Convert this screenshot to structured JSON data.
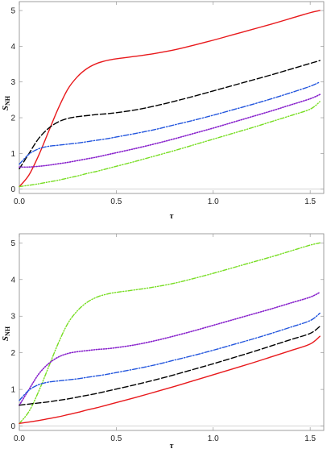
{
  "chart_data": [
    {
      "type": "line",
      "title": "",
      "xlabel": "τ",
      "ylabel": "S",
      "ylabel_sub": "NH",
      "xlim": [
        0,
        1.57
      ],
      "ylim": [
        -0.12,
        5.25
      ],
      "xticks": [
        0.0,
        0.5,
        1.0,
        1.5
      ],
      "xtick_labels": [
        "0.0",
        "0.5",
        "1.0",
        "1.5"
      ],
      "yticks": [
        0,
        1,
        2,
        3,
        4,
        5
      ],
      "ytick_labels": [
        "0",
        "1",
        "2",
        "3",
        "4",
        "5"
      ],
      "grid": false,
      "series": [
        {
          "color": "#e8191c",
          "style": "solid",
          "x": [
            0,
            0.05,
            0.1,
            0.15,
            0.2,
            0.25,
            0.3,
            0.35,
            0.4,
            0.45,
            0.5,
            0.6,
            0.7,
            0.8,
            0.9,
            1.0,
            1.1,
            1.2,
            1.3,
            1.4,
            1.5,
            1.55
          ],
          "y": [
            0.07,
            0.4,
            0.95,
            1.6,
            2.25,
            2.8,
            3.15,
            3.38,
            3.52,
            3.6,
            3.65,
            3.72,
            3.8,
            3.9,
            4.03,
            4.17,
            4.32,
            4.47,
            4.62,
            4.78,
            4.94,
            5.0
          ]
        },
        {
          "color": "#000000",
          "style": "dashed",
          "x": [
            0,
            0.05,
            0.1,
            0.15,
            0.2,
            0.25,
            0.3,
            0.35,
            0.4,
            0.45,
            0.5,
            0.6,
            0.7,
            0.8,
            0.9,
            1.0,
            1.1,
            1.2,
            1.3,
            1.4,
            1.5,
            1.55
          ],
          "y": [
            0.57,
            1.0,
            1.42,
            1.7,
            1.88,
            1.98,
            2.03,
            2.06,
            2.09,
            2.11,
            2.14,
            2.22,
            2.33,
            2.46,
            2.6,
            2.75,
            2.9,
            3.05,
            3.2,
            3.36,
            3.52,
            3.6
          ]
        },
        {
          "color": "#2255dd",
          "style": "dashdot",
          "x": [
            0,
            0.05,
            0.1,
            0.15,
            0.2,
            0.25,
            0.3,
            0.35,
            0.4,
            0.45,
            0.5,
            0.6,
            0.7,
            0.8,
            0.9,
            1.0,
            1.1,
            1.2,
            1.3,
            1.4,
            1.5,
            1.55
          ],
          "y": [
            0.7,
            0.98,
            1.13,
            1.2,
            1.23,
            1.26,
            1.29,
            1.33,
            1.37,
            1.41,
            1.46,
            1.56,
            1.67,
            1.8,
            1.93,
            2.07,
            2.22,
            2.37,
            2.53,
            2.7,
            2.88,
            3.0
          ]
        },
        {
          "color": "#8822cc",
          "style": "dotted",
          "x": [
            0,
            0.05,
            0.1,
            0.15,
            0.2,
            0.25,
            0.3,
            0.35,
            0.4,
            0.45,
            0.5,
            0.6,
            0.7,
            0.8,
            0.9,
            1.0,
            1.1,
            1.2,
            1.3,
            1.4,
            1.5,
            1.55
          ],
          "y": [
            0.62,
            0.62,
            0.64,
            0.67,
            0.71,
            0.75,
            0.8,
            0.85,
            0.9,
            0.96,
            1.02,
            1.14,
            1.27,
            1.41,
            1.56,
            1.71,
            1.87,
            2.03,
            2.19,
            2.36,
            2.53,
            2.65
          ]
        },
        {
          "color": "#77dd22",
          "style": "dashdotdot",
          "x": [
            0,
            0.05,
            0.1,
            0.15,
            0.2,
            0.25,
            0.3,
            0.35,
            0.4,
            0.45,
            0.5,
            0.6,
            0.7,
            0.8,
            0.9,
            1.0,
            1.1,
            1.2,
            1.3,
            1.4,
            1.5,
            1.55
          ],
          "y": [
            0.07,
            0.11,
            0.15,
            0.2,
            0.25,
            0.31,
            0.37,
            0.44,
            0.5,
            0.57,
            0.64,
            0.78,
            0.93,
            1.08,
            1.24,
            1.4,
            1.56,
            1.72,
            1.89,
            2.06,
            2.24,
            2.45
          ]
        }
      ]
    },
    {
      "type": "line",
      "title": "",
      "xlabel": "τ",
      "ylabel": "S",
      "ylabel_sub": "NH",
      "xlim": [
        0,
        1.57
      ],
      "ylim": [
        -0.12,
        5.25
      ],
      "xticks": [
        0.0,
        0.5,
        1.0,
        1.5
      ],
      "xtick_labels": [
        "0.0",
        "0.5",
        "1.0",
        "1.5"
      ],
      "yticks": [
        0,
        1,
        2,
        3,
        4,
        5
      ],
      "ytick_labels": [
        "0",
        "1",
        "2",
        "3",
        "4",
        "5"
      ],
      "grid": false,
      "series": [
        {
          "color": "#77dd22",
          "style": "dashdotdot",
          "x": [
            0,
            0.05,
            0.1,
            0.15,
            0.2,
            0.25,
            0.3,
            0.35,
            0.4,
            0.45,
            0.5,
            0.6,
            0.7,
            0.8,
            0.9,
            1.0,
            1.1,
            1.2,
            1.3,
            1.4,
            1.5,
            1.55
          ],
          "y": [
            0.07,
            0.4,
            0.95,
            1.6,
            2.25,
            2.8,
            3.15,
            3.38,
            3.52,
            3.6,
            3.65,
            3.72,
            3.8,
            3.9,
            4.03,
            4.17,
            4.32,
            4.47,
            4.62,
            4.78,
            4.94,
            5.0
          ]
        },
        {
          "color": "#8822cc",
          "style": "dotted",
          "x": [
            0,
            0.05,
            0.1,
            0.15,
            0.2,
            0.25,
            0.3,
            0.35,
            0.4,
            0.45,
            0.5,
            0.6,
            0.7,
            0.8,
            0.9,
            1.0,
            1.1,
            1.2,
            1.3,
            1.4,
            1.5,
            1.55
          ],
          "y": [
            0.57,
            1.0,
            1.42,
            1.7,
            1.88,
            1.98,
            2.03,
            2.06,
            2.09,
            2.11,
            2.14,
            2.22,
            2.33,
            2.46,
            2.6,
            2.75,
            2.9,
            3.05,
            3.2,
            3.36,
            3.52,
            3.65
          ]
        },
        {
          "color": "#2255dd",
          "style": "dashdot",
          "x": [
            0,
            0.05,
            0.1,
            0.15,
            0.2,
            0.25,
            0.3,
            0.35,
            0.4,
            0.45,
            0.5,
            0.6,
            0.7,
            0.8,
            0.9,
            1.0,
            1.1,
            1.2,
            1.3,
            1.4,
            1.5,
            1.55
          ],
          "y": [
            0.7,
            0.98,
            1.13,
            1.2,
            1.23,
            1.26,
            1.29,
            1.33,
            1.37,
            1.41,
            1.46,
            1.56,
            1.67,
            1.8,
            1.93,
            2.07,
            2.22,
            2.37,
            2.53,
            2.7,
            2.88,
            3.08
          ]
        },
        {
          "color": "#000000",
          "style": "dashed",
          "x": [
            0,
            0.05,
            0.1,
            0.15,
            0.2,
            0.25,
            0.3,
            0.35,
            0.4,
            0.45,
            0.5,
            0.6,
            0.7,
            0.8,
            0.9,
            1.0,
            1.1,
            1.2,
            1.3,
            1.4,
            1.5,
            1.55
          ],
          "y": [
            0.57,
            0.6,
            0.63,
            0.66,
            0.7,
            0.74,
            0.79,
            0.84,
            0.89,
            0.95,
            1.01,
            1.13,
            1.26,
            1.4,
            1.55,
            1.7,
            1.86,
            2.02,
            2.19,
            2.36,
            2.53,
            2.72
          ]
        },
        {
          "color": "#e8191c",
          "style": "solid",
          "x": [
            0,
            0.05,
            0.1,
            0.15,
            0.2,
            0.25,
            0.3,
            0.35,
            0.4,
            0.45,
            0.5,
            0.6,
            0.7,
            0.8,
            0.9,
            1.0,
            1.1,
            1.2,
            1.3,
            1.4,
            1.5,
            1.55
          ],
          "y": [
            0.07,
            0.11,
            0.15,
            0.2,
            0.25,
            0.31,
            0.37,
            0.44,
            0.5,
            0.57,
            0.64,
            0.78,
            0.93,
            1.08,
            1.24,
            1.4,
            1.56,
            1.72,
            1.89,
            2.06,
            2.24,
            2.45
          ]
        }
      ]
    }
  ]
}
